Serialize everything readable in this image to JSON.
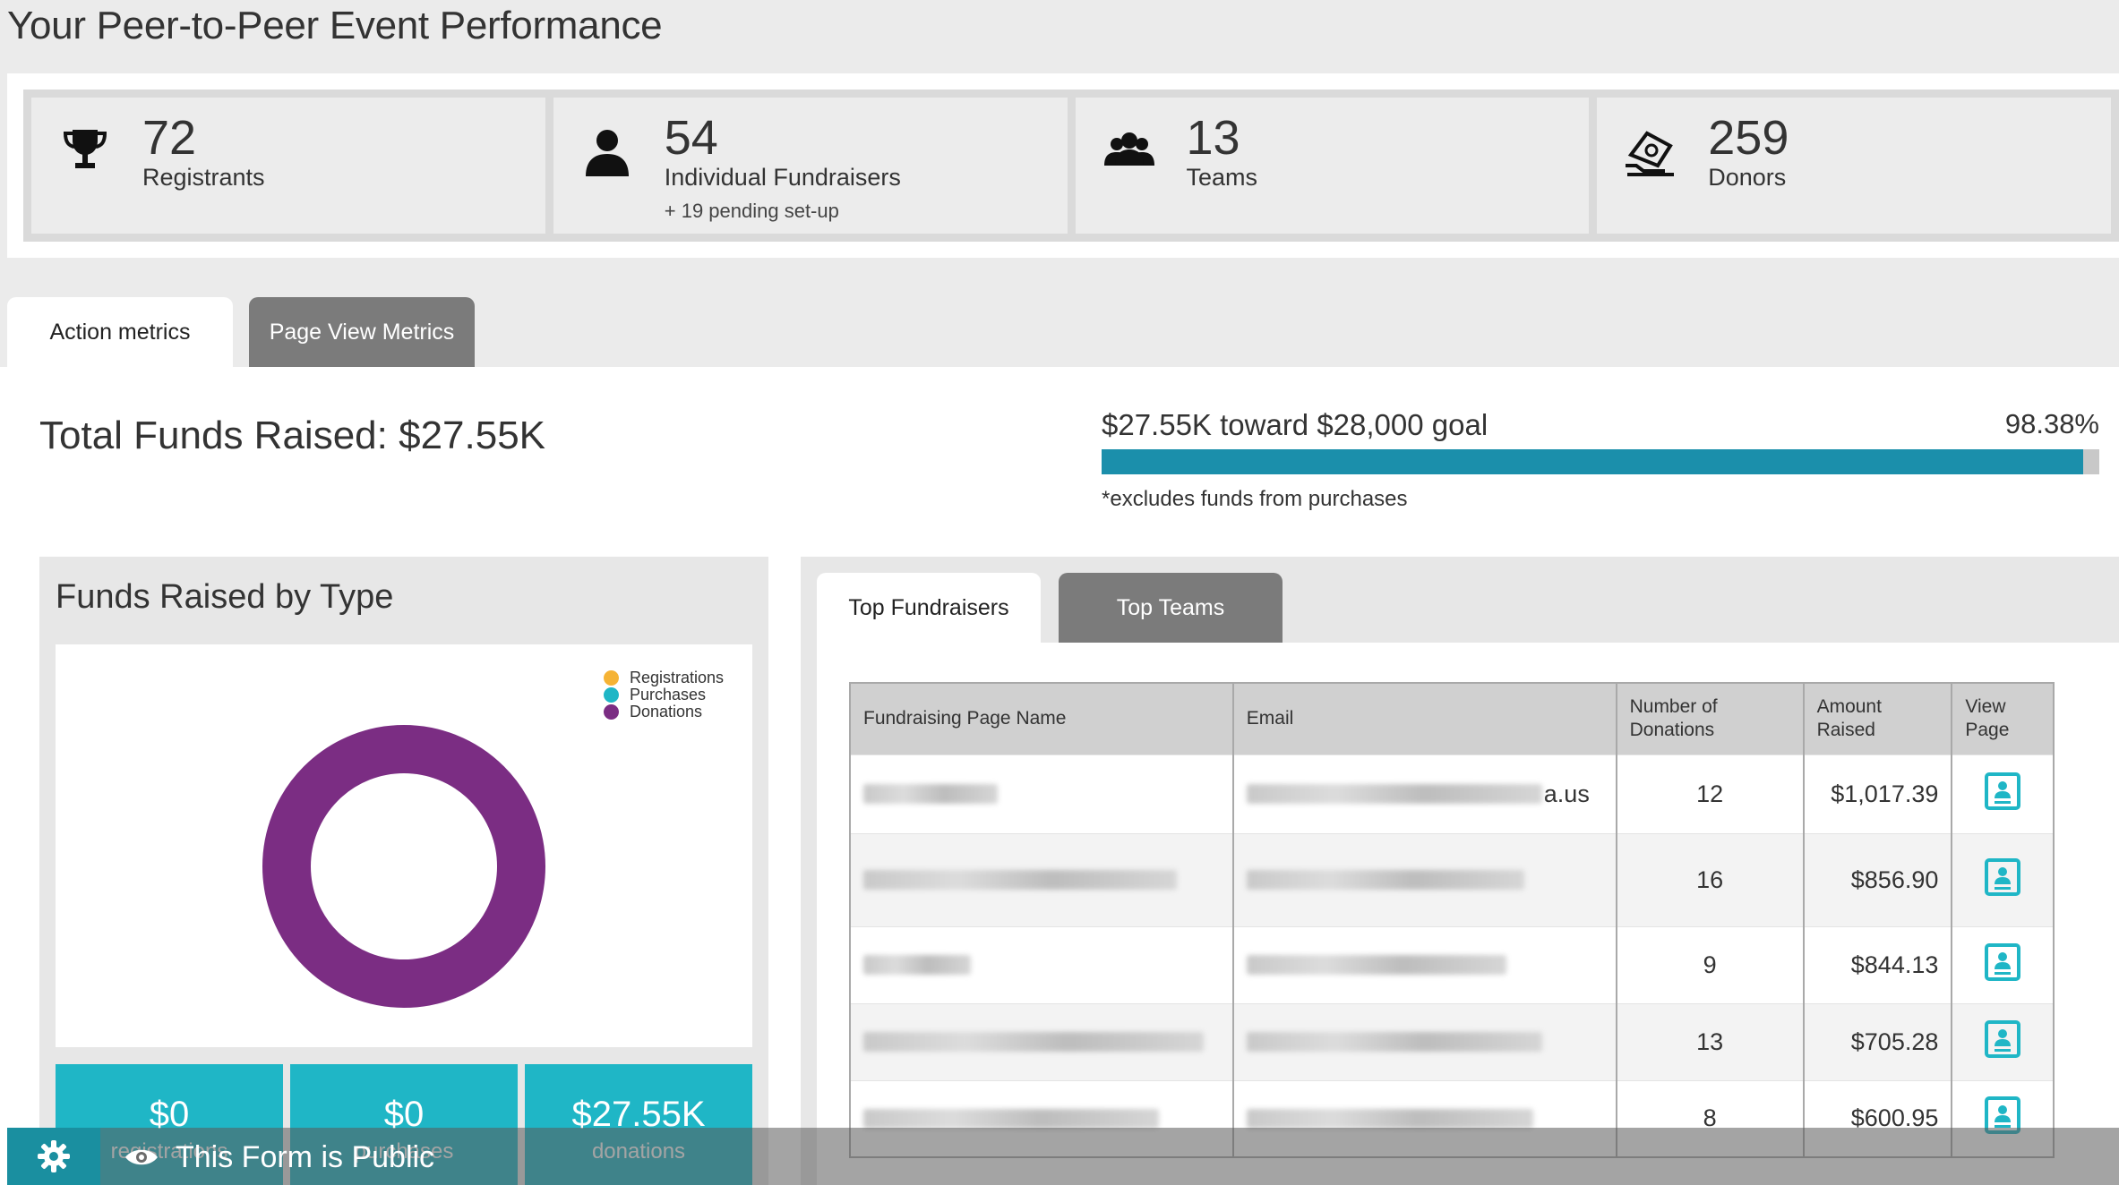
{
  "page": {
    "title": "Your Peer-to-Peer Event Performance"
  },
  "stats": [
    {
      "icon": "trophy-icon",
      "value": "72",
      "label": "Registrants",
      "sub": ""
    },
    {
      "icon": "person-icon",
      "value": "54",
      "label": "Individual Fundraisers",
      "sub": "+ 19 pending set-up"
    },
    {
      "icon": "group-icon",
      "value": "13",
      "label": "Teams",
      "sub": ""
    },
    {
      "icon": "donation-hand-icon",
      "value": "259",
      "label": "Donors",
      "sub": ""
    }
  ],
  "tabs": [
    {
      "label": "Action metrics",
      "active": true
    },
    {
      "label": "Page View Metrics",
      "active": false
    }
  ],
  "funds": {
    "total_text": "Total Funds Raised: $27.55K",
    "goal_text": "$27.55K toward $28,000 goal",
    "goal_pct": "98.38%",
    "goal_fraction": 0.9838,
    "note": "*excludes funds from purchases"
  },
  "funds_by_type": {
    "title": "Funds Raised by Type",
    "legend": [
      {
        "label": "Registrations",
        "color": "#f5b335"
      },
      {
        "label": "Purchases",
        "color": "#1fb6c6"
      },
      {
        "label": "Donations",
        "color": "#7b2d83"
      }
    ],
    "tiles": [
      {
        "value": "$0",
        "label": "registrations"
      },
      {
        "value": "$0",
        "label": "purchases"
      },
      {
        "value": "$27.55K",
        "label": "donations"
      }
    ]
  },
  "chart_data": {
    "type": "pie",
    "categories": [
      "Registrations",
      "Purchases",
      "Donations"
    ],
    "values": [
      0,
      0,
      27550
    ],
    "colors": [
      "#f5b335",
      "#1fb6c6",
      "#7b2d83"
    ],
    "title": "Funds Raised by Type",
    "legend": "top-right"
  },
  "top_tabs": [
    {
      "label": "Top Fundraisers",
      "active": true
    },
    {
      "label": "Top Teams",
      "active": false
    }
  ],
  "table": {
    "headers": [
      "Fundraising Page Name",
      "Email",
      "Number of Donations",
      "Amount Raised",
      "View Page"
    ],
    "rows": [
      {
        "name": "[redacted]",
        "email_tail": "a.us",
        "donations": "12",
        "amount": "$1,017.39"
      },
      {
        "name": "[redacted]",
        "email_tail": "",
        "donations": "16",
        "amount": "$856.90"
      },
      {
        "name": "[redacted]",
        "email_tail": "",
        "donations": "9",
        "amount": "$844.13"
      },
      {
        "name": "[redacted]",
        "email_tail": "",
        "donations": "13",
        "amount": "$705.28"
      },
      {
        "name": "[redacted]",
        "email_tail": "",
        "donations": "8",
        "amount": "$600.95"
      }
    ]
  },
  "footer": {
    "text": "This Form is Public",
    "accent": "#1a8fa0"
  },
  "colors": {
    "accent": "#1b8fab",
    "teal": "#1fb6c6",
    "purple": "#7b2d83",
    "inactive_tab": "#7b7b7b"
  }
}
